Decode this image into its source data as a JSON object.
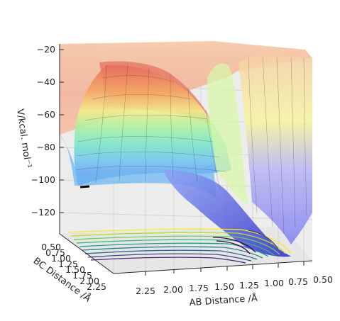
{
  "chart_data": {
    "type": "surface",
    "title": "",
    "xlabel": "AB Distance /Å",
    "ylabel": "BC Distance /Å",
    "zlabel": "V/kcal. mol⁻¹",
    "x_ticks": [
      "2.25",
      "2.00",
      "1.75",
      "1.50",
      "1.25",
      "1.00",
      "0.75",
      "0.50"
    ],
    "y_ticks": [
      "0.50",
      "0.75",
      "1.00",
      "1.25",
      "1.50",
      "1.75",
      "2.00",
      "2.25"
    ],
    "z_ticks": [
      "−20",
      "−40",
      "−60",
      "−80",
      "−100",
      "−120"
    ],
    "xlim": [
      0.5,
      2.3
    ],
    "ylim": [
      0.5,
      2.3
    ],
    "zlim": [
      -135,
      -20
    ],
    "grid": true,
    "colormap_surface": "jet (semi-transparent)",
    "colormap_contour": "viridis",
    "contour_projection": "floor",
    "trajectory_marker_color": "#000000"
  }
}
